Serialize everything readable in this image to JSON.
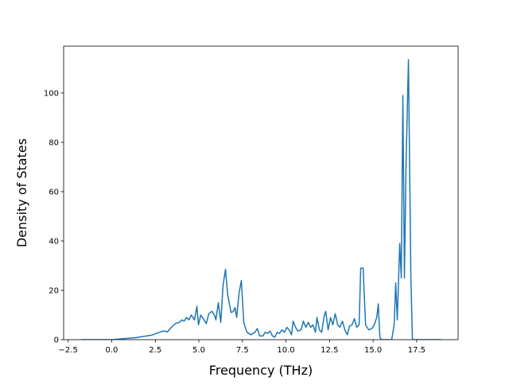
{
  "chart_data": {
    "type": "line",
    "xlabel": "Frequency (THz)",
    "ylabel": "Density of States",
    "xlim": [
      -2.76,
      19.88
    ],
    "ylim": [
      0,
      119
    ],
    "xticks": [
      {
        "value": -2.5,
        "label": "−2.5"
      },
      {
        "value": 0,
        "label": "0.0"
      },
      2.5,
      {
        "value": 5,
        "label": "5.0"
      },
      7.5,
      {
        "value": 10,
        "label": "10.0"
      },
      12.5,
      {
        "value": 15,
        "label": "15.0"
      },
      17.5
    ],
    "yticks": [
      0,
      20,
      40,
      60,
      80,
      100
    ],
    "grid": false,
    "series": [
      {
        "color": "#1f77b4",
        "x": [
          -1.73,
          0,
          1.37,
          2.28,
          2.74,
          2.97,
          3.2,
          3.42,
          3.65,
          3.88,
          4.02,
          4.16,
          4.29,
          4.43,
          4.57,
          4.75,
          4.89,
          4.98,
          5.11,
          5.3,
          5.43,
          5.57,
          5.75,
          5.89,
          5.98,
          6.12,
          6.26,
          6.39,
          6.53,
          6.66,
          6.85,
          6.99,
          7.08,
          7.17,
          7.31,
          7.44,
          7.58,
          7.76,
          7.99,
          8.22,
          8.36,
          8.49,
          8.68,
          8.81,
          8.95,
          9.09,
          9.22,
          9.36,
          9.5,
          9.63,
          9.77,
          9.91,
          10.05,
          10.18,
          10.32,
          10.41,
          10.55,
          10.68,
          10.87,
          11.0,
          11.14,
          11.28,
          11.42,
          11.55,
          11.69,
          11.78,
          11.92,
          12.05,
          12.19,
          12.28,
          12.42,
          12.56,
          12.69,
          12.83,
          12.97,
          13.1,
          13.24,
          13.38,
          13.52,
          13.65,
          13.79,
          13.93,
          14.06,
          14.2,
          14.29,
          14.43,
          14.57,
          14.75,
          14.93,
          15.07,
          15.21,
          15.3,
          15.39,
          15.48,
          16.07,
          16.21,
          16.3,
          16.39,
          16.53,
          16.62,
          16.71,
          16.8,
          16.89,
          17.03,
          17.17,
          17.26,
          18.86
        ],
        "values": [
          0,
          0,
          0.8,
          1.8,
          3,
          3.5,
          3.2,
          5,
          6.5,
          7,
          8,
          7.5,
          9,
          8,
          10,
          8,
          13.5,
          6,
          10,
          8,
          6.5,
          10.5,
          11.5,
          10,
          8,
          15,
          7,
          22,
          28.5,
          18,
          11,
          11.5,
          13,
          9,
          19,
          24,
          7,
          3,
          2,
          3,
          4.5,
          1.5,
          1.5,
          3,
          2.5,
          3.5,
          1.5,
          1,
          3,
          2.5,
          4,
          3,
          5,
          4,
          2,
          7.5,
          5,
          3.5,
          4,
          7.5,
          5,
          7,
          5,
          6,
          3,
          9,
          4,
          3,
          9.5,
          11.5,
          4,
          9,
          6,
          10.5,
          6,
          5,
          7.5,
          4,
          2,
          5.5,
          6,
          8.5,
          5,
          6,
          29,
          29,
          6,
          4,
          4.5,
          6,
          9,
          14.5,
          1,
          0,
          0,
          6,
          23,
          8,
          39,
          25,
          99,
          25,
          70,
          113.5,
          25,
          0,
          0
        ]
      }
    ]
  }
}
